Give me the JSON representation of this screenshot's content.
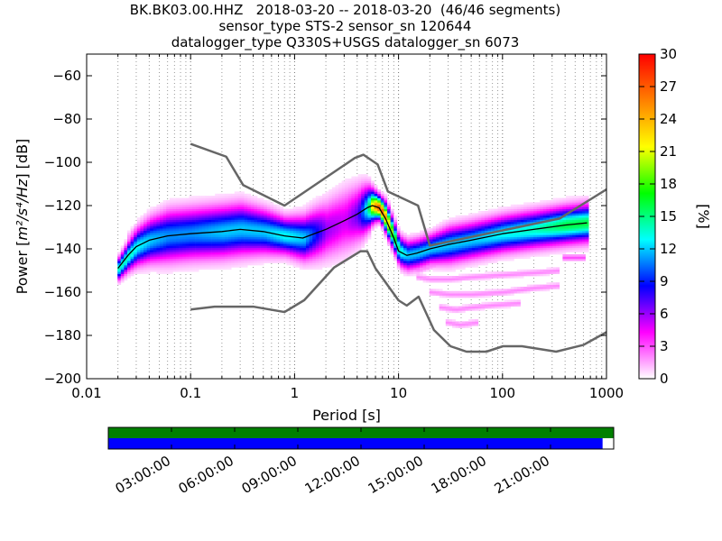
{
  "chart_data": [
    {
      "type": "heatmap",
      "subtype": "probabilistic-power-spectral-density",
      "title": [
        "BK.BK03.00.HHZ   2018-03-20 -- 2018-03-20  (46/46 segments)",
        "sensor_type STS-2 sensor_sn 120644",
        "datalogger_type Q330S+USGS datalogger_sn 6073"
      ],
      "xlabel": "Period [s]",
      "ylabel_prefix": "Power [",
      "ylabel_math": "m²/s⁴/Hz",
      "ylabel_suffix": "] [dB]",
      "xscale": "log",
      "xlim": [
        0.01,
        1000
      ],
      "ylim": [
        -200,
        -50
      ],
      "xticks": [
        0.01,
        0.1,
        1,
        10,
        100,
        1000
      ],
      "xtick_labels": [
        "0.01",
        "0.1",
        "1",
        "10",
        "100",
        "1000"
      ],
      "yticks": [
        -200,
        -180,
        -160,
        -140,
        -120,
        -100,
        -80,
        -60
      ],
      "ytick_labels": [
        "−200",
        "−180",
        "−160",
        "−140",
        "−120",
        "−100",
        "−80",
        "−60"
      ],
      "grid": "dotted, x minor and major",
      "colorbar": {
        "label": "[%]",
        "range": [
          0,
          30
        ],
        "ticks": [
          0,
          3,
          6,
          9,
          12,
          15,
          18,
          21,
          24,
          27,
          30
        ],
        "tick_labels": [
          "0",
          "3",
          "6",
          "9",
          "12",
          "15",
          "18",
          "21",
          "24",
          "27",
          "30"
        ],
        "colormap": "pqlx",
        "colors": [
          "#ffffff",
          "#ff00ff",
          "#0000ff",
          "#00ffff",
          "#00ff00",
          "#ffff00",
          "#ff8000",
          "#ff0000"
        ]
      },
      "new_high_noise_model": {
        "color": "#666666",
        "x": [
          0.1,
          0.22,
          0.32,
          0.8,
          3.8,
          4.6,
          6.3,
          7.9,
          15.4,
          20,
          354,
          1000
        ],
        "y": [
          -91.5,
          -97.4,
          -110.5,
          -120,
          -98,
          -96.5,
          -101,
          -113.5,
          -120,
          -138.5,
          -126,
          -112.5
        ]
      },
      "new_low_noise_model": {
        "color": "#666666",
        "x": [
          0.1,
          0.17,
          0.4,
          0.8,
          1.24,
          2.4,
          4.3,
          5,
          6,
          10,
          12,
          15.6,
          21.9,
          31.6,
          45,
          70,
          101,
          154,
          328,
          600,
          1000
        ],
        "y": [
          -168,
          -166.7,
          -166.7,
          -169.2,
          -163.7,
          -148.6,
          -141.1,
          -141.1,
          -149,
          -163.8,
          -166.2,
          -162.1,
          -177.5,
          -185,
          -187.5,
          -187.5,
          -185,
          -185,
          -187.5,
          -184.4,
          -178.5
        ]
      },
      "mode_curve": {
        "color": "#000000",
        "x": [
          0.02,
          0.025,
          0.03,
          0.04,
          0.06,
          0.1,
          0.2,
          0.3,
          0.5,
          0.8,
          1.2,
          2,
          3,
          4,
          5,
          5.6,
          6.5,
          7.5,
          9,
          10,
          12,
          15,
          20,
          30,
          50,
          100,
          200,
          400,
          650
        ],
        "y": [
          -149,
          -143,
          -139,
          -136,
          -134,
          -133,
          -132,
          -131,
          -132,
          -134,
          -135,
          -131,
          -127,
          -124,
          -121,
          -120,
          -121,
          -126,
          -135,
          -141,
          -143,
          -142,
          -140,
          -138,
          -136,
          -133,
          -131,
          -129,
          -128
        ]
      },
      "density_series": [
        {
          "x": [
            0.02,
            0.025,
            0.03,
            0.04,
            0.06,
            0.1,
            0.2,
            0.3,
            0.5,
            0.8,
            1.2,
            2,
            3,
            4,
            5,
            5.6,
            6.5,
            7.5,
            9,
            10,
            12,
            15,
            20,
            30,
            50,
            100,
            200,
            400,
            650
          ],
          "y": [
            -149,
            -143,
            -139,
            -136,
            -134,
            -133,
            -132,
            -131,
            -132,
            -134,
            -135,
            -131,
            -127,
            -124,
            -121,
            -120,
            -121,
            -126,
            -135,
            -141,
            -143,
            -142,
            -140,
            -138,
            -136,
            -133,
            -131,
            -129,
            -128
          ],
          "spread_db": [
            3,
            4,
            5,
            6,
            7,
            7,
            7,
            7,
            6,
            5,
            6,
            8,
            9,
            8,
            6,
            4,
            3,
            4,
            4,
            4,
            4,
            4,
            4,
            5,
            5,
            5,
            5,
            5,
            5
          ],
          "peak_percent": [
            14,
            14,
            13,
            12,
            11,
            11,
            12,
            12,
            12,
            13,
            12,
            6,
            5,
            7,
            14,
            24,
            28,
            24,
            17,
            14,
            12,
            12,
            12,
            12,
            12,
            13,
            14,
            16,
            16
          ]
        },
        {
          "x": [
            0.025,
            0.03,
            0.05,
            0.07,
            0.1,
            0.2,
            0.3,
            0.5,
            0.8
          ],
          "y": [
            -135,
            -131,
            -127,
            -125,
            -124,
            -124,
            -124,
            -125,
            -126
          ],
          "spread_db": [
            2,
            2,
            2,
            2,
            2,
            2,
            2,
            2,
            2
          ],
          "peak_percent": [
            2,
            3,
            3,
            3,
            3,
            3,
            3,
            2,
            2
          ]
        },
        {
          "x": [
            0.05,
            0.1,
            0.3,
            0.6,
            1
          ],
          "y": [
            -122,
            -122,
            -122,
            -123,
            -124
          ],
          "spread_db": [
            1,
            1,
            1,
            1,
            1
          ],
          "peak_percent": [
            1,
            1,
            1,
            1,
            1
          ]
        },
        {
          "x": [
            12,
            15,
            20,
            30,
            50,
            100,
            200,
            400,
            650
          ],
          "y": [
            -149,
            -150,
            -148,
            -146,
            -143,
            -140,
            -139,
            -137,
            -136
          ],
          "spread_db": [
            1,
            1,
            1,
            1,
            1,
            1,
            1,
            1,
            1
          ],
          "peak_percent": [
            2,
            2,
            2,
            2,
            2,
            2,
            2,
            2,
            2
          ]
        },
        {
          "x": [
            15,
            20,
            30,
            50,
            100,
            200,
            350
          ],
          "y": [
            -153,
            -154,
            -154,
            -153,
            -152,
            -151,
            -150
          ],
          "spread_db": [
            1,
            1,
            1,
            1,
            1,
            1,
            1
          ],
          "peak_percent": [
            2,
            2,
            2,
            2,
            2,
            2,
            2
          ]
        },
        {
          "x": [
            20,
            30,
            50,
            100,
            200,
            350
          ],
          "y": [
            -160,
            -161,
            -161,
            -160,
            -158,
            -157
          ],
          "spread_db": [
            1,
            1,
            1,
            1,
            1,
            1
          ],
          "peak_percent": [
            2,
            2,
            2,
            2,
            2,
            2
          ]
        },
        {
          "x": [
            25,
            35,
            50,
            80,
            150
          ],
          "y": [
            -167,
            -168,
            -167,
            -166,
            -165
          ],
          "spread_db": [
            1,
            1,
            1,
            1,
            1
          ],
          "peak_percent": [
            2,
            2,
            2,
            2,
            2
          ]
        },
        {
          "x": [
            30,
            40,
            60
          ],
          "y": [
            -174,
            -175,
            -174
          ],
          "spread_db": [
            1,
            1,
            1
          ],
          "peak_percent": [
            2,
            2,
            2
          ]
        },
        {
          "x": [
            250,
            350,
            500,
            650
          ],
          "y": [
            -134,
            -134,
            -134,
            -134
          ],
          "spread_db": [
            1,
            1,
            1,
            1
          ],
          "peak_percent": [
            2,
            2,
            2,
            2
          ]
        },
        {
          "x": [
            400,
            500,
            650
          ],
          "y": [
            -144,
            -144,
            -144
          ],
          "spread_db": [
            1,
            1,
            1
          ],
          "peak_percent": [
            3,
            3,
            3
          ]
        }
      ]
    },
    {
      "type": "timeline",
      "rows": [
        {
          "name": "segments",
          "color": "#008000",
          "coverage": [
            0,
            1
          ]
        },
        {
          "name": "data",
          "color": "#0000ff",
          "coverage": [
            0,
            0.978
          ]
        }
      ],
      "tick_labels": [
        "03:00:00",
        "06:00:00",
        "09:00:00",
        "12:00:00",
        "15:00:00",
        "18:00:00",
        "21:00:00"
      ],
      "tick_positions_hours": [
        3,
        6,
        9,
        12,
        15,
        18,
        21
      ],
      "range_hours": [
        0,
        24
      ]
    }
  ]
}
